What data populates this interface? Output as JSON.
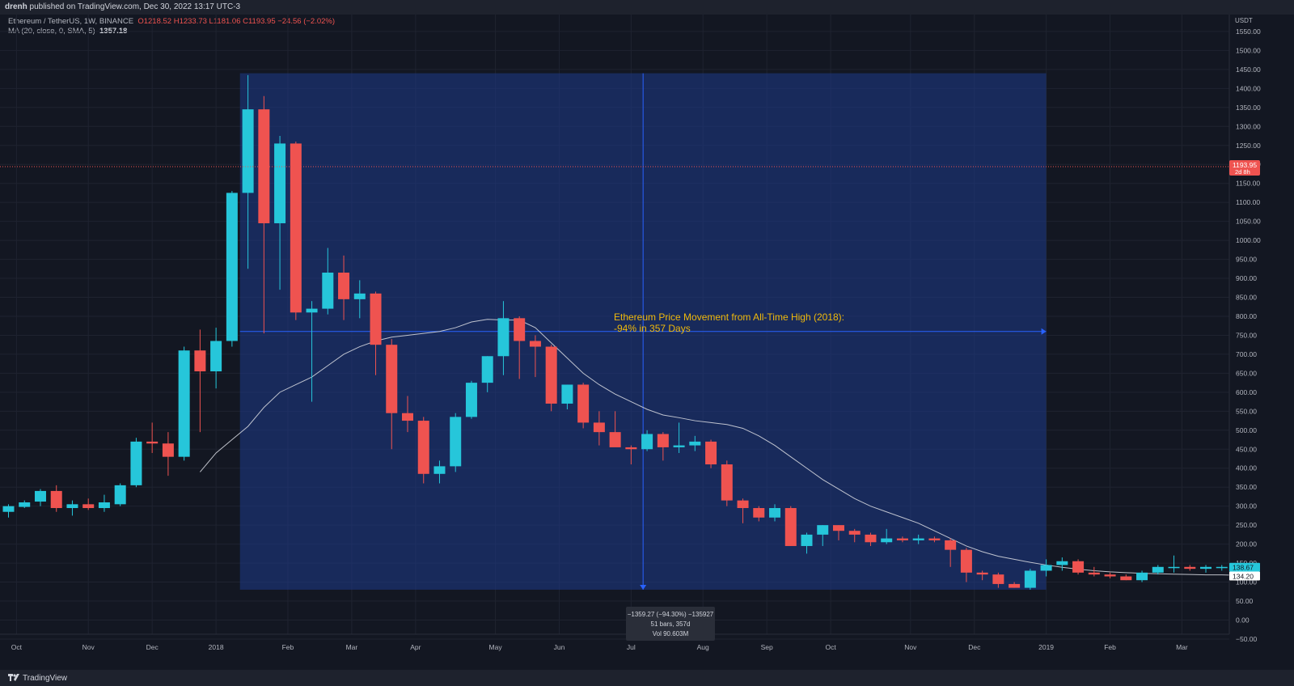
{
  "header": {
    "published_prefix": "drenh",
    "published_text": " published on TradingView.com, Dec 30, 2022 13:17 UTC-3"
  },
  "legend": {
    "symbol": "Ethereum / TetherUS, 1W, BINANCE",
    "ohlc": "O1218.52  H1233.73  L1181.06  C1193.95  −24.56 (−2.02%)",
    "ma_label": "MA (20, close, 0, SMA, 5)",
    "ma_value": "1357.18"
  },
  "brand": {
    "name": "TradingView"
  },
  "colors": {
    "up": "#26c6da",
    "down": "#ef5350",
    "ma": "#d1d4dc",
    "range_fill": "#1e3a8a",
    "range_line": "#2962ff",
    "annotation": "#f0b90b"
  },
  "chart_data": {
    "type": "candlestick",
    "currency": "USDT",
    "ylim": [
      -75,
      1600
    ],
    "y_ticks": [
      -50,
      0,
      50,
      100,
      150,
      200,
      250,
      300,
      350,
      400,
      450,
      500,
      550,
      600,
      650,
      700,
      750,
      800,
      850,
      900,
      950,
      1000,
      1050,
      1100,
      1150,
      1200,
      1250,
      1300,
      1350,
      1400,
      1450,
      1500,
      1550
    ],
    "y_tick_labels": [
      "−50.00",
      "0.00",
      "50.00",
      "100.00",
      "150.00",
      "200.00",
      "250.00",
      "300.00",
      "350.00",
      "400.00",
      "450.00",
      "500.00",
      "550.00",
      "600.00",
      "650.00",
      "700.00",
      "750.00",
      "800.00",
      "850.00",
      "900.00",
      "950.00",
      "1000.00",
      "1050.00",
      "1100.00",
      "1150.00",
      "1200.00",
      "1250.00",
      "1300.00",
      "1350.00",
      "1400.00",
      "1450.00",
      "1500.00",
      "1550.00"
    ],
    "x_labels": [
      {
        "label": "Oct",
        "index": 0.5
      },
      {
        "label": "Nov",
        "index": 5
      },
      {
        "label": "Dec",
        "index": 9
      },
      {
        "label": "2018",
        "index": 13
      },
      {
        "label": "Feb",
        "index": 17.5
      },
      {
        "label": "Mar",
        "index": 21.5
      },
      {
        "label": "Apr",
        "index": 25.5
      },
      {
        "label": "May",
        "index": 30.5
      },
      {
        "label": "Jun",
        "index": 34.5
      },
      {
        "label": "Jul",
        "index": 39
      },
      {
        "label": "Aug",
        "index": 43.5
      },
      {
        "label": "Sep",
        "index": 47.5
      },
      {
        "label": "Oct",
        "index": 51.5
      },
      {
        "label": "Nov",
        "index": 56.5
      },
      {
        "label": "Dec",
        "index": 60.5
      },
      {
        "label": "2019",
        "index": 65
      },
      {
        "label": "Feb",
        "index": 69
      },
      {
        "label": "Mar",
        "index": 73.5
      }
    ],
    "candles": [
      [
        285,
        305,
        270,
        300
      ],
      [
        298,
        315,
        295,
        310
      ],
      [
        312,
        345,
        300,
        340
      ],
      [
        340,
        355,
        285,
        295
      ],
      [
        295,
        315,
        275,
        305
      ],
      [
        305,
        320,
        290,
        295
      ],
      [
        295,
        330,
        285,
        310
      ],
      [
        305,
        360,
        300,
        355
      ],
      [
        355,
        480,
        350,
        470
      ],
      [
        470,
        520,
        440,
        465
      ],
      [
        465,
        495,
        380,
        430
      ],
      [
        430,
        720,
        420,
        710
      ],
      [
        710,
        765,
        495,
        655
      ],
      [
        655,
        770,
        610,
        735
      ],
      [
        735,
        1130,
        720,
        1125
      ],
      [
        1125,
        1435,
        925,
        1345
      ],
      [
        1345,
        1380,
        755,
        1045
      ],
      [
        1045,
        1275,
        870,
        1255
      ],
      [
        1255,
        1260,
        790,
        810
      ],
      [
        810,
        840,
        575,
        820
      ],
      [
        820,
        980,
        805,
        915
      ],
      [
        915,
        960,
        790,
        845
      ],
      [
        845,
        895,
        795,
        860
      ],
      [
        860,
        865,
        645,
        725
      ],
      [
        725,
        740,
        450,
        545
      ],
      [
        545,
        590,
        495,
        525
      ],
      [
        525,
        535,
        360,
        385
      ],
      [
        385,
        420,
        360,
        405
      ],
      [
        405,
        545,
        390,
        535
      ],
      [
        535,
        630,
        530,
        625
      ],
      [
        625,
        695,
        600,
        695
      ],
      [
        695,
        840,
        645,
        795
      ],
      [
        795,
        800,
        635,
        735
      ],
      [
        735,
        750,
        640,
        720
      ],
      [
        720,
        725,
        550,
        570
      ],
      [
        570,
        620,
        555,
        620
      ],
      [
        620,
        625,
        505,
        520
      ],
      [
        520,
        550,
        460,
        495
      ],
      [
        495,
        550,
        465,
        455
      ],
      [
        455,
        460,
        410,
        450
      ],
      [
        450,
        500,
        445,
        490
      ],
      [
        490,
        495,
        420,
        455
      ],
      [
        455,
        520,
        440,
        460
      ],
      [
        460,
        485,
        445,
        470
      ],
      [
        470,
        475,
        400,
        410
      ],
      [
        410,
        420,
        300,
        315
      ],
      [
        315,
        320,
        255,
        295
      ],
      [
        295,
        300,
        260,
        270
      ],
      [
        270,
        305,
        260,
        295
      ],
      [
        295,
        300,
        195,
        195
      ],
      [
        195,
        230,
        175,
        225
      ],
      [
        225,
        250,
        195,
        250
      ],
      [
        250,
        250,
        210,
        235
      ],
      [
        235,
        240,
        205,
        225
      ],
      [
        225,
        230,
        195,
        205
      ],
      [
        205,
        240,
        200,
        215
      ],
      [
        215,
        220,
        205,
        210
      ],
      [
        210,
        225,
        200,
        215
      ],
      [
        215,
        220,
        205,
        210
      ],
      [
        210,
        215,
        140,
        185
      ],
      [
        185,
        190,
        100,
        125
      ],
      [
        125,
        130,
        105,
        120
      ],
      [
        120,
        125,
        85,
        95
      ],
      [
        95,
        100,
        85,
        85
      ],
      [
        85,
        135,
        80,
        130
      ],
      [
        130,
        160,
        115,
        145
      ],
      [
        145,
        165,
        130,
        155
      ],
      [
        155,
        160,
        120,
        125
      ],
      [
        125,
        140,
        115,
        120
      ],
      [
        120,
        125,
        110,
        115
      ],
      [
        115,
        120,
        105,
        105
      ],
      [
        105,
        130,
        100,
        125
      ],
      [
        125,
        145,
        120,
        140
      ],
      [
        140,
        170,
        125,
        140
      ],
      [
        140,
        145,
        130,
        135
      ],
      [
        135,
        145,
        125,
        140
      ],
      [
        140,
        145,
        130,
        140
      ],
      [
        140,
        145,
        130,
        138
      ]
    ],
    "ma": [
      [
        12,
        390
      ],
      [
        13,
        440
      ],
      [
        14,
        475
      ],
      [
        15,
        510
      ],
      [
        16,
        560
      ],
      [
        17,
        600
      ],
      [
        18,
        620
      ],
      [
        19,
        640
      ],
      [
        20,
        670
      ],
      [
        21,
        700
      ],
      [
        22,
        720
      ],
      [
        23,
        735
      ],
      [
        24,
        745
      ],
      [
        25,
        750
      ],
      [
        26,
        755
      ],
      [
        27,
        760
      ],
      [
        28,
        770
      ],
      [
        29,
        785
      ],
      [
        30,
        792
      ],
      [
        31,
        790
      ],
      [
        32,
        790
      ],
      [
        33,
        770
      ],
      [
        34,
        730
      ],
      [
        35,
        690
      ],
      [
        36,
        650
      ],
      [
        37,
        620
      ],
      [
        38,
        595
      ],
      [
        39,
        575
      ],
      [
        40,
        555
      ],
      [
        41,
        540
      ],
      [
        42,
        533
      ],
      [
        43,
        525
      ],
      [
        44,
        520
      ],
      [
        45,
        515
      ],
      [
        46,
        505
      ],
      [
        47,
        485
      ],
      [
        48,
        460
      ],
      [
        49,
        430
      ],
      [
        50,
        400
      ],
      [
        51,
        370
      ],
      [
        52,
        345
      ],
      [
        53,
        320
      ],
      [
        54,
        300
      ],
      [
        55,
        285
      ],
      [
        56,
        270
      ],
      [
        57,
        255
      ],
      [
        58,
        235
      ],
      [
        59,
        215
      ],
      [
        60,
        195
      ],
      [
        61,
        180
      ],
      [
        62,
        168
      ],
      [
        63,
        160
      ],
      [
        64,
        152
      ],
      [
        65,
        145
      ],
      [
        66,
        139
      ],
      [
        67,
        134
      ],
      [
        68,
        130
      ],
      [
        69,
        127
      ],
      [
        70,
        125
      ],
      [
        71,
        123
      ],
      [
        72,
        122
      ],
      [
        73,
        121
      ],
      [
        74,
        120
      ],
      [
        75,
        119
      ],
      [
        76,
        119
      ],
      [
        77,
        118
      ]
    ],
    "current_price": 1193.95,
    "current_price_label": "1193.95",
    "countdown_label": "2d 8h",
    "ma_price_label": "138.67",
    "other_price_label": "134.20",
    "other_price_value": 134.2,
    "measure": {
      "start_index": 14.5,
      "end_index": 65,
      "top_price": 1440,
      "bottom_price": 80,
      "mid_price": 760,
      "annotation_line1": "Ethereum Price Movement from All-Time High (2018):",
      "annotation_line2": "-94% in 357 Days",
      "tooltip_line1": "−1359.27 (−94.30%) −135927",
      "tooltip_line2": "51 bars, 357d",
      "tooltip_line3": "Vol 90.603M"
    }
  }
}
